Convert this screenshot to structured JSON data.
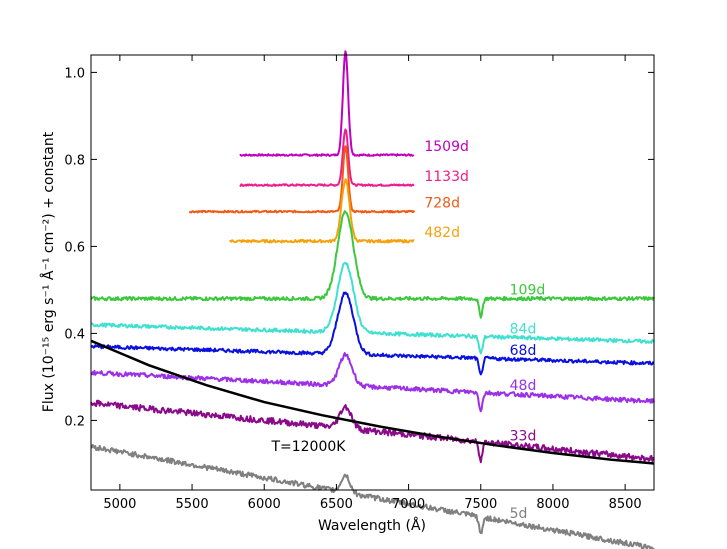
{
  "chart_data": {
    "type": "line",
    "title": "",
    "xlabel": "Wavelength (Å)",
    "ylabel": "Flux (10⁻¹⁵ erg s⁻¹ Å⁻¹ cm⁻²) + constant",
    "xlim": [
      4800,
      8700
    ],
    "ylim": [
      0.04,
      1.04
    ],
    "x_ticks": [
      5000,
      5500,
      6000,
      6500,
      7000,
      7500,
      8000,
      8500
    ],
    "y_ticks": [
      0.2,
      0.4,
      0.6,
      0.8,
      1.0
    ],
    "x_tick_labels": [
      "5000",
      "5500",
      "6000",
      "6500",
      "7000",
      "7500",
      "8000",
      "8500"
    ],
    "y_tick_labels": [
      "0.2",
      "0.4",
      "0.6",
      "0.8",
      "1.0"
    ],
    "series": [
      {
        "name": "1509d",
        "color": "#c000c0",
        "x_range": [
          5830,
          7040
        ],
        "base": 0.81,
        "slope": 0.0,
        "noise": 0.002,
        "halpha": 0.24,
        "width": 18
      },
      {
        "name": "1133d",
        "color": "#ee1c8c",
        "x_range": [
          5830,
          7040
        ],
        "base": 0.741,
        "slope": 0.0,
        "noise": 0.002,
        "halpha": 0.13,
        "width": 18
      },
      {
        "name": "728d",
        "color": "#f05a14",
        "x_range": [
          5480,
          7040
        ],
        "base": 0.68,
        "slope": 0.0,
        "noise": 0.002,
        "halpha": 0.15,
        "width": 18
      },
      {
        "name": "482d",
        "color": "#f5a20a",
        "x_range": [
          5760,
          7040
        ],
        "base": 0.612,
        "slope": 0.0,
        "noise": 0.003,
        "halpha": 0.14,
        "width": 28
      },
      {
        "name": "109d",
        "color": "#3cc83c",
        "x_range": [
          4800,
          8700
        ],
        "base": 0.48,
        "slope": 0.0,
        "noise": 0.004,
        "halpha": 0.2,
        "width": 55
      },
      {
        "name": "84d",
        "color": "#40e0d0",
        "x_range": [
          4800,
          8700
        ],
        "base": 0.42,
        "slope": -1e-05,
        "noise": 0.004,
        "halpha": 0.16,
        "width": 55
      },
      {
        "name": "68d",
        "color": "#0a10e0",
        "x_range": [
          4800,
          8700
        ],
        "base": 0.37,
        "slope": -1e-05,
        "noise": 0.004,
        "halpha": 0.14,
        "width": 55
      },
      {
        "name": "48d",
        "color": "#9b30e8",
        "x_range": [
          4800,
          8700
        ],
        "base": 0.31,
        "slope": -1.7e-05,
        "noise": 0.005,
        "halpha": 0.07,
        "width": 45
      },
      {
        "name": "33d",
        "color": "#8a0a8a",
        "x_range": [
          4800,
          8700
        ],
        "base": 0.24,
        "slope": -3.3e-05,
        "noise": 0.007,
        "halpha": 0.05,
        "width": 40
      },
      {
        "name": "5d",
        "color": "#808080",
        "x_range": [
          4800,
          8700
        ],
        "base": 0.14,
        "slope": -6e-05,
        "noise": 0.006,
        "halpha": 0.04,
        "width": 30
      }
    ],
    "blackbody": {
      "name": "T=12000K",
      "color": "#000000",
      "points": [
        [
          4800,
          0.383
        ],
        [
          5200,
          0.327
        ],
        [
          5600,
          0.281
        ],
        [
          6000,
          0.242
        ],
        [
          6400,
          0.212
        ],
        [
          6800,
          0.186
        ],
        [
          7200,
          0.163
        ],
        [
          7600,
          0.143
        ],
        [
          8000,
          0.125
        ],
        [
          8400,
          0.11
        ],
        [
          8700,
          0.101
        ]
      ]
    },
    "annotations": [
      "T=12000K"
    ]
  }
}
